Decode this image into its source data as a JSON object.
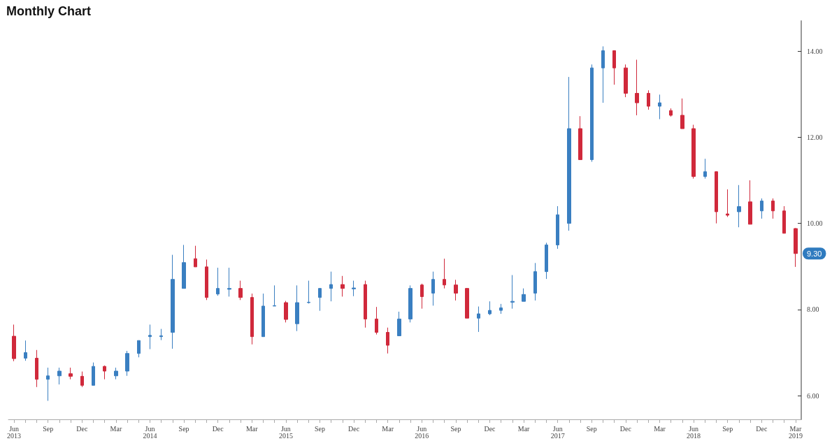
{
  "chart_data": {
    "type": "candlestick",
    "title": "Monthly Chart",
    "categories": [
      "Jun\n2013",
      null,
      null,
      "Sep",
      null,
      null,
      "Dec",
      null,
      null,
      "Mar",
      null,
      null,
      "Jun\n2014",
      null,
      null,
      "Sep",
      null,
      null,
      "Dec",
      null,
      null,
      "Mar",
      null,
      null,
      "Jun\n2015",
      null,
      null,
      "Sep",
      null,
      null,
      "Dec",
      null,
      null,
      "Mar",
      null,
      null,
      "Jun\n2016",
      null,
      null,
      "Sep",
      null,
      null,
      "Dec",
      null,
      null,
      "Mar",
      null,
      null,
      "Jun\n2017",
      null,
      null,
      "Sep",
      null,
      null,
      "Dec",
      null,
      null,
      "Mar",
      null,
      null,
      "Jun\n2018",
      null,
      null,
      "Sep",
      null,
      null,
      "Dec",
      null,
      null,
      "Mar\n2019"
    ],
    "ohlc": [
      [
        7.38,
        7.65,
        6.8,
        6.86
      ],
      [
        6.87,
        7.28,
        6.81,
        7.0
      ],
      [
        6.87,
        7.06,
        6.2,
        6.38
      ],
      [
        6.38,
        6.65,
        5.88,
        6.46
      ],
      [
        6.46,
        6.65,
        6.26,
        6.57
      ],
      [
        6.51,
        6.65,
        6.38,
        6.45
      ],
      [
        6.45,
        6.56,
        6.2,
        6.24
      ],
      [
        6.24,
        6.77,
        6.24,
        6.68
      ],
      [
        6.68,
        6.7,
        6.38,
        6.57
      ],
      [
        6.46,
        6.65,
        6.38,
        6.57
      ],
      [
        6.57,
        7.04,
        6.46,
        6.98
      ],
      [
        6.98,
        7.28,
        6.89,
        7.28
      ],
      [
        7.37,
        7.65,
        7.08,
        7.4
      ],
      [
        7.37,
        7.55,
        7.29,
        7.39
      ],
      [
        7.47,
        9.27,
        7.09,
        8.7
      ],
      [
        8.49,
        9.5,
        8.49,
        9.09
      ],
      [
        9.18,
        9.48,
        8.99,
        8.99
      ],
      [
        8.99,
        9.16,
        8.22,
        8.28
      ],
      [
        8.36,
        8.97,
        8.32,
        8.49
      ],
      [
        8.47,
        8.97,
        8.3,
        8.49
      ],
      [
        8.49,
        8.67,
        8.22,
        8.28
      ],
      [
        8.28,
        8.37,
        7.19,
        7.37
      ],
      [
        7.37,
        8.37,
        7.37,
        8.08
      ],
      [
        8.08,
        8.56,
        8.08,
        8.09
      ],
      [
        8.16,
        8.2,
        7.7,
        7.77
      ],
      [
        7.67,
        8.56,
        7.5,
        8.16
      ],
      [
        8.16,
        8.67,
        8.14,
        8.17
      ],
      [
        8.28,
        8.49,
        7.97,
        8.49
      ],
      [
        8.49,
        8.88,
        8.19,
        8.58
      ],
      [
        8.58,
        8.78,
        8.3,
        8.49
      ],
      [
        8.48,
        8.67,
        8.31,
        8.5
      ],
      [
        8.58,
        8.67,
        7.58,
        7.78
      ],
      [
        7.78,
        8.06,
        7.42,
        7.47
      ],
      [
        7.47,
        7.58,
        6.98,
        7.17
      ],
      [
        7.39,
        7.95,
        7.39,
        7.78
      ],
      [
        7.78,
        8.56,
        7.7,
        8.49
      ],
      [
        8.57,
        8.6,
        8.02,
        8.3
      ],
      [
        8.38,
        8.88,
        8.09,
        8.7
      ],
      [
        8.7,
        9.18,
        8.49,
        8.57
      ],
      [
        8.57,
        8.69,
        8.21,
        8.38
      ],
      [
        8.49,
        8.5,
        7.8,
        7.8
      ],
      [
        7.8,
        8.07,
        7.48,
        7.9
      ],
      [
        7.9,
        8.19,
        7.87,
        7.98
      ],
      [
        7.98,
        8.13,
        7.9,
        8.04
      ],
      [
        8.17,
        8.8,
        8.02,
        8.19
      ],
      [
        8.19,
        8.49,
        8.19,
        8.35
      ],
      [
        8.38,
        9.08,
        8.21,
        8.88
      ],
      [
        8.88,
        9.55,
        8.71,
        9.5
      ],
      [
        9.5,
        10.4,
        9.41,
        10.2
      ],
      [
        10.0,
        13.4,
        9.83,
        12.2
      ],
      [
        12.2,
        12.49,
        11.48,
        11.48
      ],
      [
        11.48,
        13.69,
        11.43,
        13.61
      ],
      [
        13.61,
        14.11,
        12.8,
        14.01
      ],
      [
        14.01,
        14.01,
        13.22,
        13.61
      ],
      [
        13.61,
        13.69,
        12.93,
        13.02
      ],
      [
        13.02,
        13.8,
        12.51,
        12.8
      ],
      [
        13.02,
        13.09,
        12.64,
        12.72
      ],
      [
        12.72,
        12.99,
        12.42,
        12.8
      ],
      [
        12.62,
        12.67,
        12.48,
        12.51
      ],
      [
        12.51,
        12.9,
        12.2,
        12.2
      ],
      [
        12.2,
        12.29,
        11.04,
        11.09
      ],
      [
        11.09,
        11.5,
        11.04,
        11.2
      ],
      [
        11.2,
        11.21,
        10.0,
        10.27
      ],
      [
        10.22,
        10.79,
        10.15,
        10.19
      ],
      [
        10.27,
        10.89,
        9.91,
        10.39
      ],
      [
        10.5,
        11.0,
        9.98,
        9.98
      ],
      [
        10.29,
        10.58,
        10.11,
        10.52
      ],
      [
        10.52,
        10.58,
        10.11,
        10.29
      ],
      [
        10.29,
        10.4,
        9.77,
        9.77
      ],
      [
        9.88,
        9.89,
        8.99,
        9.3
      ]
    ],
    "colors": [
      "#d0293b",
      "#3a7fc1",
      "#d0293b",
      "#3a7fc1",
      "#3a7fc1",
      "#d0293b",
      "#d0293b",
      "#3a7fc1",
      "#d0293b",
      "#3a7fc1",
      "#3a7fc1",
      "#3a7fc1",
      "#3a7fc1",
      "#3a7fc1",
      "#3a7fc1",
      "#3a7fc1",
      "#d0293b",
      "#d0293b",
      "#3a7fc1",
      "#3a7fc1",
      "#d0293b",
      "#d0293b",
      "#3a7fc1",
      "#3a7fc1",
      "#d0293b",
      "#3a7fc1",
      "#3a7fc1",
      "#3a7fc1",
      "#3a7fc1",
      "#d0293b",
      "#3a7fc1",
      "#d0293b",
      "#d0293b",
      "#d0293b",
      "#3a7fc1",
      "#3a7fc1",
      "#d0293b",
      "#3a7fc1",
      "#d0293b",
      "#d0293b",
      "#d0293b",
      "#3a7fc1",
      "#3a7fc1",
      "#3a7fc1",
      "#3a7fc1",
      "#3a7fc1",
      "#3a7fc1",
      "#3a7fc1",
      "#3a7fc1",
      "#3a7fc1",
      "#d0293b",
      "#3a7fc1",
      "#3a7fc1",
      "#d0293b",
      "#d0293b",
      "#d0293b",
      "#d0293b",
      "#3a7fc1",
      "#d0293b",
      "#d0293b",
      "#d0293b",
      "#3a7fc1",
      "#d0293b",
      "#d0293b",
      "#3a7fc1",
      "#d0293b",
      "#3a7fc1",
      "#d0293b",
      "#d0293b",
      "#d0293b"
    ],
    "ylim": [
      5.45,
      14.7
    ],
    "yticks": [
      {
        "value": 6,
        "label": "6.00"
      },
      {
        "value": 8,
        "label": "8.00"
      },
      {
        "value": 10,
        "label": "10.00"
      },
      {
        "value": 12,
        "label": "12.00"
      },
      {
        "value": 14,
        "label": "14.00"
      }
    ],
    "annotations": [
      {
        "text": "9.30",
        "y": 9.3
      }
    ],
    "grid": false
  }
}
